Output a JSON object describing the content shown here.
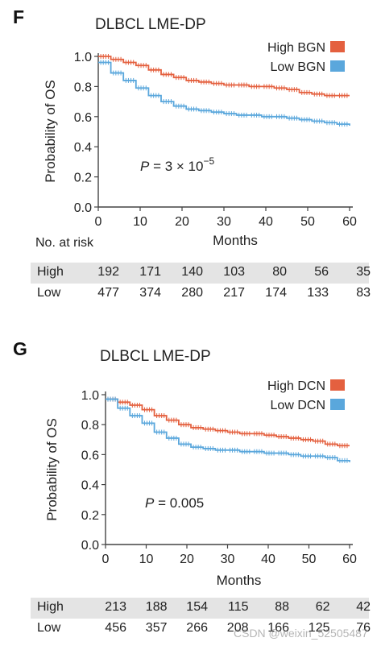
{
  "panels": [
    {
      "letter": "F",
      "chart_data": {
        "type": "line",
        "title": "DLBCL LME-DP",
        "xlabel": "Months",
        "ylabel": "Probability of OS",
        "xlim": [
          0,
          60
        ],
        "ylim": [
          0.0,
          1.0
        ],
        "xticks": [
          "0",
          "10",
          "20",
          "30",
          "40",
          "50",
          "60"
        ],
        "yticks": [
          "0.0",
          "0.2",
          "0.4",
          "0.6",
          "0.8",
          "1.0"
        ],
        "legend_position": "top-right",
        "annotation": {
          "prefix": "P",
          "text": " = 3 × 10",
          "superscript": "−5"
        },
        "series": [
          {
            "name": "High BGN",
            "color": "#e4603f",
            "x": [
              0,
              3,
              6,
              9,
              12,
              15,
              18,
              21,
              24,
              27,
              30,
              33,
              36,
              39,
              42,
              45,
              48,
              51,
              54,
              57,
              60
            ],
            "y": [
              1.0,
              0.98,
              0.96,
              0.94,
              0.91,
              0.88,
              0.86,
              0.84,
              0.83,
              0.82,
              0.81,
              0.81,
              0.8,
              0.8,
              0.79,
              0.78,
              0.76,
              0.75,
              0.74,
              0.74,
              0.74
            ]
          },
          {
            "name": "Low BGN",
            "color": "#5aa7dc",
            "x": [
              0,
              3,
              6,
              9,
              12,
              15,
              18,
              21,
              24,
              27,
              30,
              33,
              36,
              39,
              42,
              45,
              48,
              51,
              54,
              57,
              60
            ],
            "y": [
              0.96,
              0.89,
              0.84,
              0.79,
              0.74,
              0.7,
              0.67,
              0.65,
              0.64,
              0.63,
              0.62,
              0.61,
              0.61,
              0.6,
              0.6,
              0.59,
              0.58,
              0.57,
              0.56,
              0.55,
              0.54
            ]
          }
        ]
      },
      "risk_table": {
        "header": "No. at risk",
        "xlabel": "Months",
        "rows": [
          {
            "name": "High",
            "values": [
              "192",
              "171",
              "140",
              "103",
              "80",
              "56",
              "35"
            ]
          },
          {
            "name": "Low",
            "values": [
              "477",
              "374",
              "280",
              "217",
              "174",
              "133",
              "83"
            ]
          }
        ]
      }
    },
    {
      "letter": "G",
      "chart_data": {
        "type": "line",
        "title": "DLBCL LME-DP",
        "xlabel": "Months",
        "ylabel": "Probability of OS",
        "xlim": [
          0,
          60
        ],
        "ylim": [
          0.0,
          1.0
        ],
        "xticks": [
          "0",
          "10",
          "20",
          "30",
          "40",
          "50",
          "60"
        ],
        "yticks": [
          "0.0",
          "0.2",
          "0.4",
          "0.6",
          "0.8",
          "1.0"
        ],
        "legend_position": "top-right",
        "annotation": {
          "prefix": "P",
          "text": " = 0.005",
          "superscript": ""
        },
        "series": [
          {
            "name": "High DCN",
            "color": "#e4603f",
            "x": [
              0,
              3,
              6,
              9,
              12,
              15,
              18,
              21,
              24,
              27,
              30,
              33,
              36,
              39,
              42,
              45,
              48,
              51,
              54,
              57,
              60
            ],
            "y": [
              0.97,
              0.95,
              0.93,
              0.9,
              0.86,
              0.83,
              0.8,
              0.78,
              0.77,
              0.76,
              0.75,
              0.74,
              0.74,
              0.73,
              0.72,
              0.71,
              0.7,
              0.69,
              0.67,
              0.66,
              0.66
            ]
          },
          {
            "name": "Low DCN",
            "color": "#5aa7dc",
            "x": [
              0,
              3,
              6,
              9,
              12,
              15,
              18,
              21,
              24,
              27,
              30,
              33,
              36,
              39,
              42,
              45,
              48,
              51,
              54,
              57,
              60
            ],
            "y": [
              0.97,
              0.91,
              0.86,
              0.81,
              0.75,
              0.71,
              0.67,
              0.65,
              0.64,
              0.63,
              0.63,
              0.62,
              0.62,
              0.61,
              0.61,
              0.6,
              0.59,
              0.59,
              0.58,
              0.56,
              0.55
            ]
          }
        ]
      },
      "risk_table": {
        "header": "",
        "xlabel": "Months",
        "rows": [
          {
            "name": "High",
            "values": [
              "213",
              "188",
              "154",
              "115",
              "88",
              "62",
              "42"
            ]
          },
          {
            "name": "Low",
            "values": [
              "456",
              "357",
              "266",
              "208",
              "166",
              "125",
              "76"
            ]
          }
        ]
      }
    }
  ],
  "watermark": "CSDN @weixin_52505487"
}
